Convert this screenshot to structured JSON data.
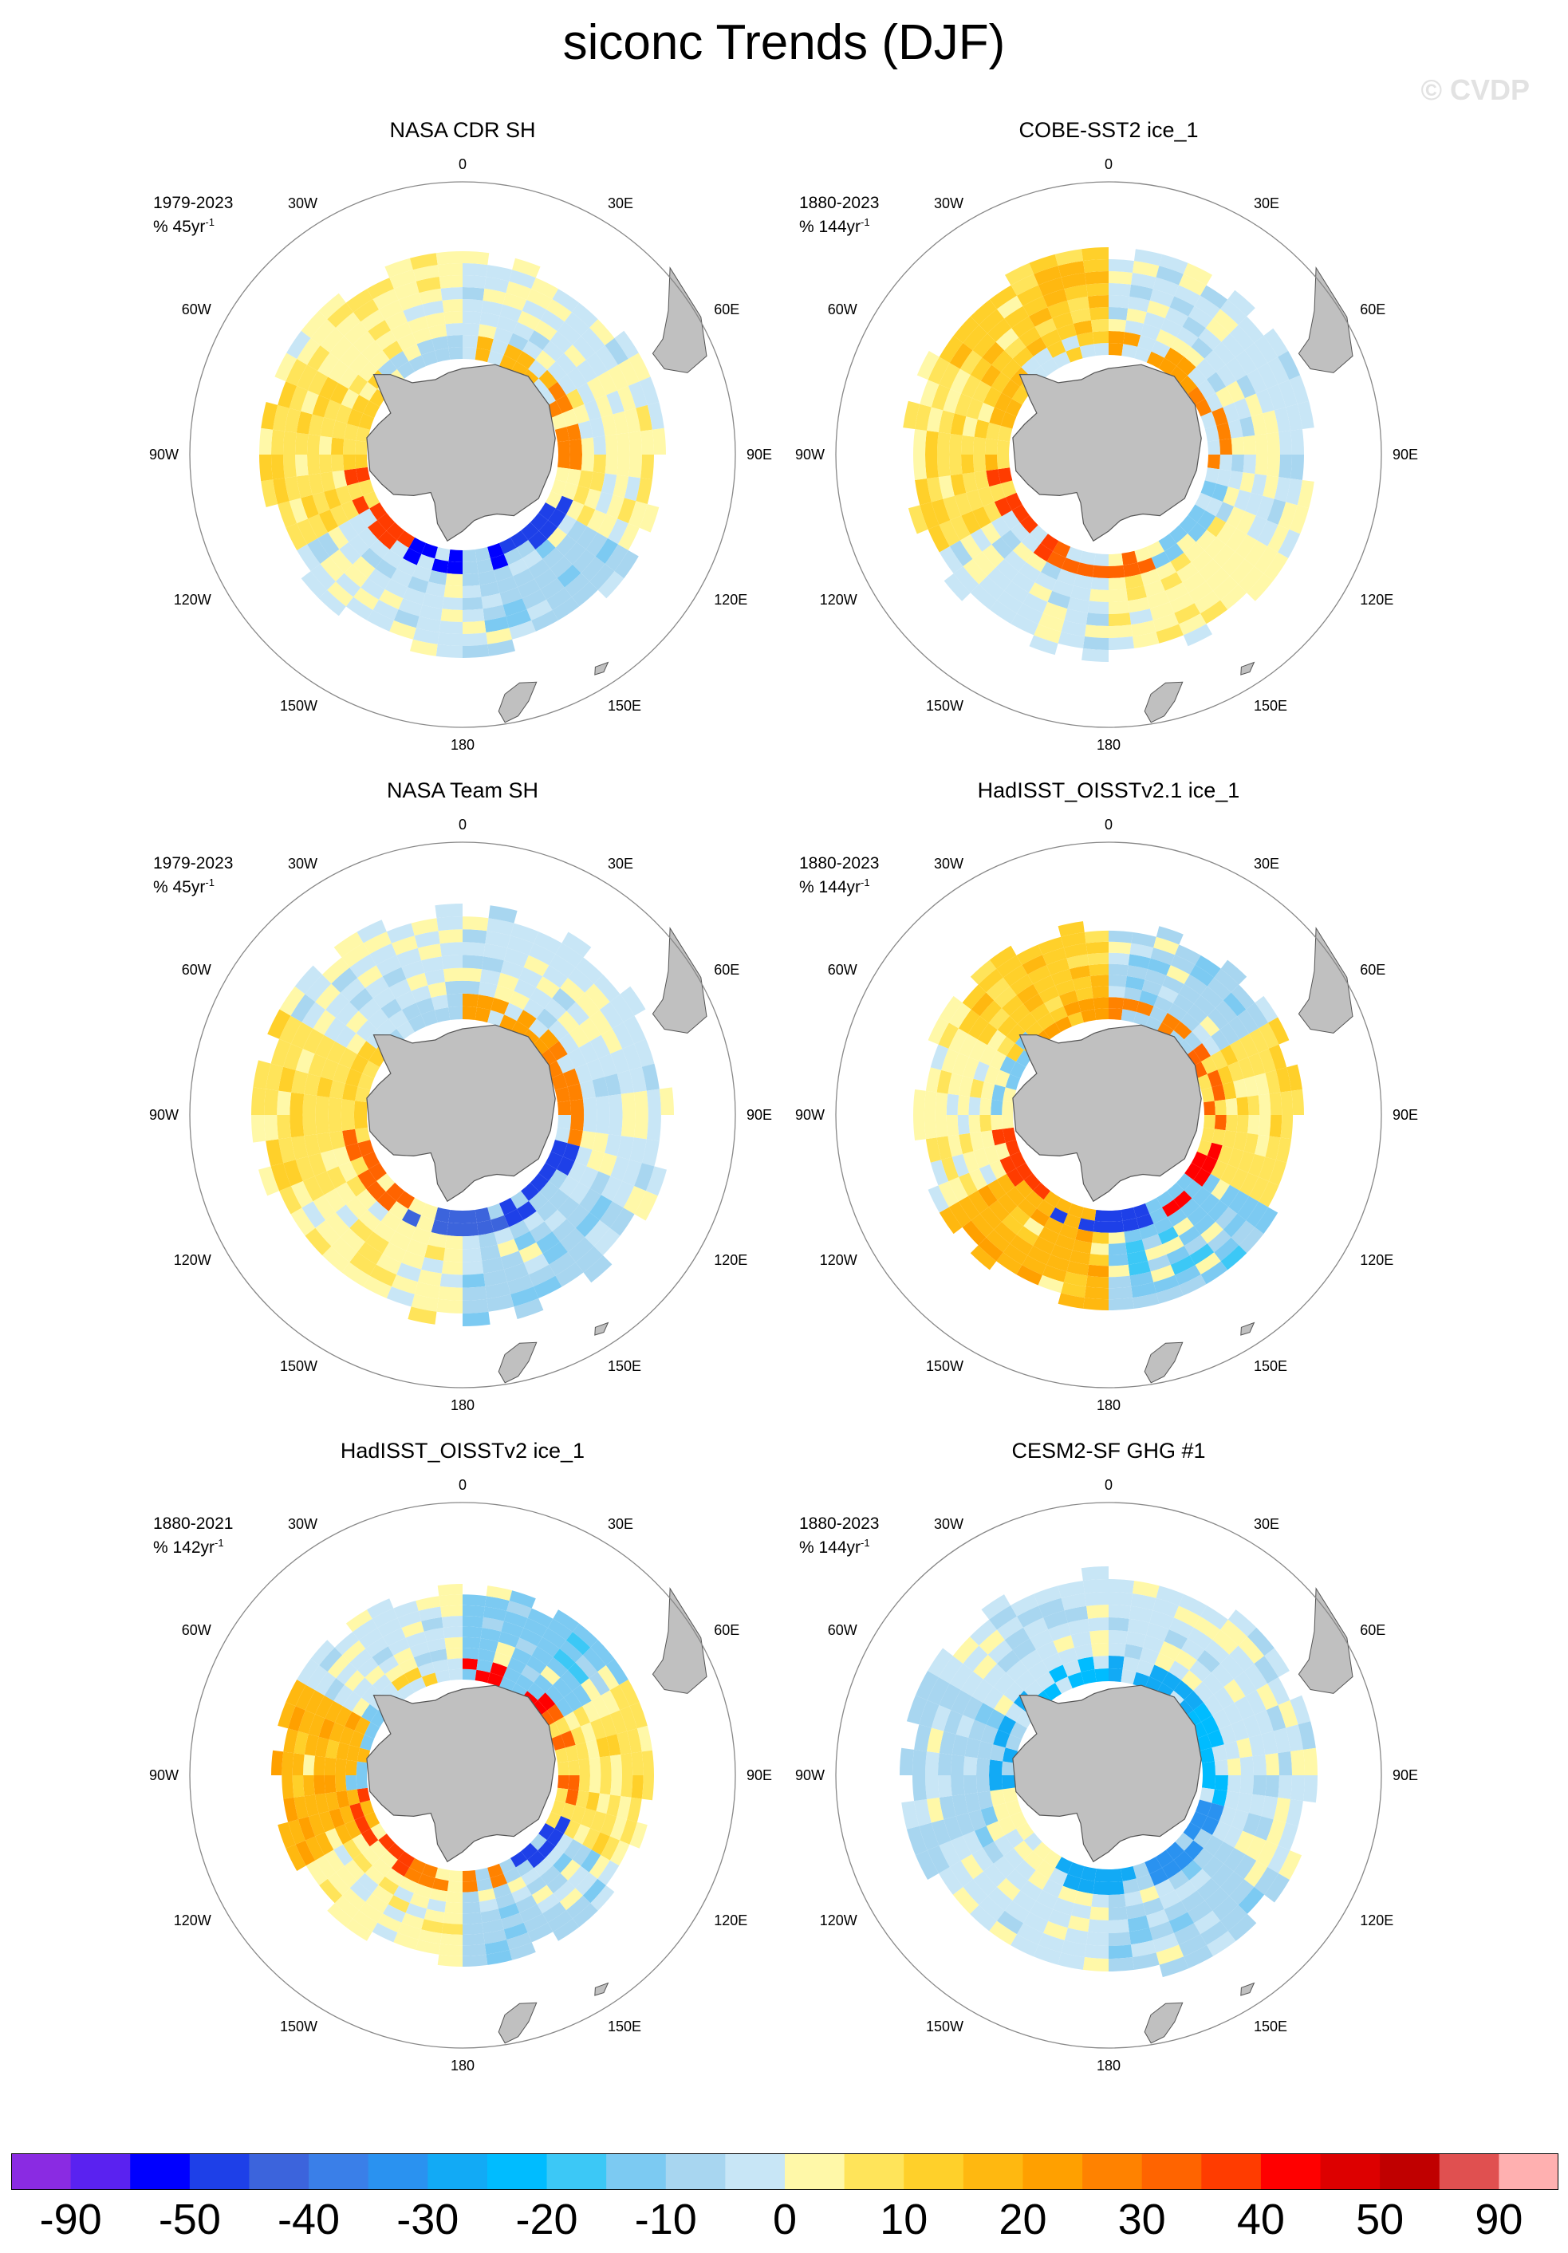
{
  "title": "siconc Trends (DJF)",
  "watermark": "© CVDP",
  "lon_labels": [
    "0",
    "30E",
    "60E",
    "90E",
    "120E",
    "150E",
    "180",
    "150W",
    "120W",
    "90W",
    "60W",
    "30W"
  ],
  "panels": [
    {
      "title": "NASA CDR SH",
      "period": "1979-2023",
      "units_text": "% 45yr",
      "units_exp": "-1",
      "pattern": "cdr"
    },
    {
      "title": "COBE-SST2 ice_1",
      "period": "1880-2023",
      "units_text": "% 144yr",
      "units_exp": "-1",
      "pattern": "cobe"
    },
    {
      "title": "NASA Team SH",
      "period": "1979-2023",
      "units_text": "% 45yr",
      "units_exp": "-1",
      "pattern": "team"
    },
    {
      "title": "HadISST_OISSTv2.1 ice_1",
      "period": "1880-2023",
      "units_text": "% 144yr",
      "units_exp": "-1",
      "pattern": "had21"
    },
    {
      "title": "HadISST_OISSTv2 ice_1",
      "period": "1880-2021",
      "units_text": "% 142yr",
      "units_exp": "-1",
      "pattern": "had2"
    },
    {
      "title": "CESM2-SF GHG #1",
      "period": "1880-2023",
      "units_text": "% 144yr",
      "units_exp": "-1",
      "pattern": "cesm"
    }
  ],
  "colorbar": {
    "colors": [
      "#8a2be2",
      "#5a22f0",
      "#0000ff",
      "#1e40e8",
      "#3c64dc",
      "#3a7fe8",
      "#2a92f0",
      "#12aaf5",
      "#00bcff",
      "#3cc8f6",
      "#7ccaf2",
      "#a8d6f0",
      "#c8e6f6",
      "#fff8a8",
      "#ffe45a",
      "#ffd02a",
      "#ffb810",
      "#ffa000",
      "#ff8200",
      "#ff6400",
      "#ff3c00",
      "#ff0000",
      "#dd0000",
      "#c00000",
      "#e05050",
      "#ffb0b0"
    ],
    "labels": [
      "-90",
      "-50",
      "-40",
      "-30",
      "-20",
      "-10",
      "0",
      "10",
      "20",
      "30",
      "40",
      "50",
      "90"
    ]
  },
  "land_color": "#c0c0c0",
  "missing_color": "#ffffff"
}
